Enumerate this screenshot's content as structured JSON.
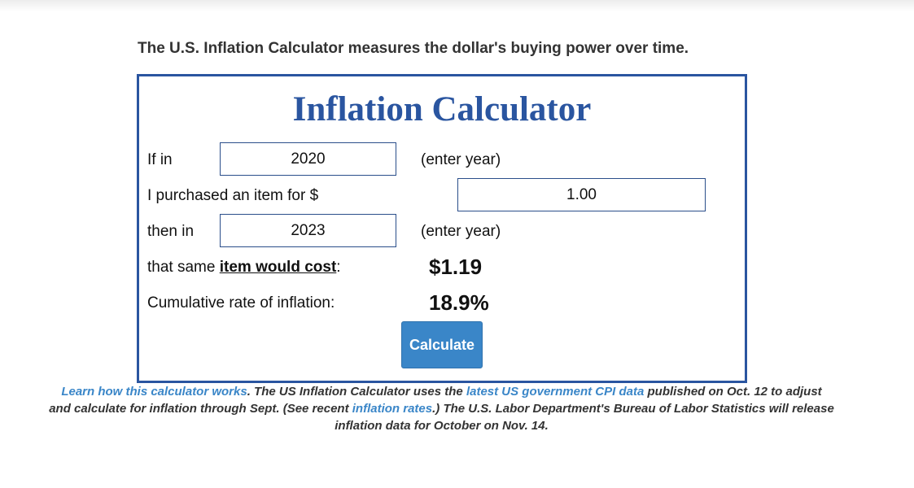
{
  "intro": "The U.S. Inflation Calculator measures the dollar's buying power over time.",
  "calculator": {
    "title": "Inflation Calculator",
    "row1_label": "If in",
    "start_year": "2020",
    "row1_hint": "(enter year)",
    "row2_label": "I purchased an item for $",
    "amount": "1.00",
    "row3_label": "then in",
    "end_year": "2023",
    "row3_hint": "(enter year)",
    "cost_label_prefix": "that same ",
    "cost_label_emph": "item would cost",
    "cost_label_suffix": ":",
    "cost_value": "$1.19",
    "rate_label": "Cumulative rate of inflation:",
    "rate_value": "18.9%",
    "button_label": "Calculate"
  },
  "footer": {
    "link_how": "Learn how this calculator works",
    "text1": ". The US Inflation Calculator uses the ",
    "link_cpi": "latest US government CPI data",
    "text2": " published on Oct. 12 to adjust and calculate for inflation through Sept. (See recent ",
    "link_rates": "inflation rates",
    "text3": ".) The U.S. Labor Department's Bureau of Labor Statistics will release inflation data for October on Nov. 14."
  },
  "colors": {
    "brand_blue": "#2a55a0",
    "button_blue": "#3a86c8",
    "link_blue": "#3a86c8"
  }
}
